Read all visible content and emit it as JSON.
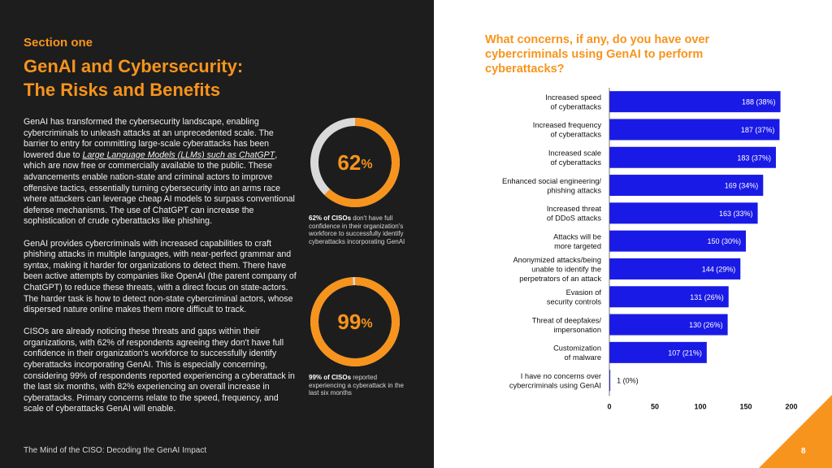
{
  "left": {
    "section": "Section one",
    "title_line1": "GenAI and Cybersecurity:",
    "title_line2": "The Risks and Benefits",
    "para1_a": "GenAI has transformed the cybersecurity landscape, enabling cybercriminals to unleash attacks at an unprecedented scale. The barrier to entry for committing large-scale cyberattacks has been lowered due to ",
    "para1_link": "Large Language Models (LLMs) such as ChatGPT",
    "para1_b": ", which are now free or commercially available to the public. These advancements enable nation-state and criminal actors to improve offensive tactics, essentially turning cybersecurity into an arms race where attackers can leverage cheap AI models to surpass conventional defense mechanisms. The use of ChatGPT can increase the sophistication of crude cyberattacks like phishing.",
    "para2": "GenAI provides cybercriminals with increased capabilities to craft phishing attacks in multiple languages, with near-perfect grammar and syntax, making it harder for organizations to detect them. There have been active attempts by companies like OpenAI (the parent company of ChatGPT) to reduce these threats, with a direct focus on state-actors. The harder task is how to detect non-state cybercriminal actors, whose dispersed nature online makes them more difficult to track.",
    "para3": "CISOs are already noticing these threats and gaps within their organizations, with 62% of respondents agreeing they don't have full confidence in their organization's workforce to successfully identify cyberattacks incorporating GenAI. This is especially concerning, considering 99% of respondents reported experiencing a cyberattack in the last six months, with 82% experiencing an overall increase in cyberattacks. Primary concerns relate to the speed, frequency, and scale of cyberattacks GenAI will enable.",
    "footer": "The Mind of the CISO: Decoding the GenAI Impact"
  },
  "stats": [
    {
      "value": "62",
      "unit": "%",
      "fraction": 0.62,
      "bold": "62% of CISOs",
      "rest": " don't have full confidence in their organization's workforce to successfully identify cyberattacks incorporating GenAI"
    },
    {
      "value": "99",
      "unit": "%",
      "fraction": 0.99,
      "bold": "99% of CISOs",
      "rest": " reported experiencing a cyberattack in the last six months"
    }
  ],
  "page_number": "8",
  "colors": {
    "accent": "#f7941d",
    "bar": "#1a1ae6",
    "dark": "#1d1d1d",
    "ring_track": "#d9d9d9"
  },
  "chart_data": {
    "type": "bar",
    "orientation": "horizontal",
    "title": "What concerns, if any, do you have over cybercriminals using GenAI to perform cyberattacks?",
    "categories": [
      [
        "Increased speed",
        "of cyberattacks"
      ],
      [
        "Increased frequency",
        "of cyberattacks"
      ],
      [
        "Increased scale",
        "of cyberattacks"
      ],
      [
        "Enhanced social engineering/",
        "phishing attacks"
      ],
      [
        "Increased threat",
        "of DDoS attacks"
      ],
      [
        "Attacks will be",
        "more targeted"
      ],
      [
        "Anonymized attacks/being",
        "unable to identify the",
        "perpetrators of an attack"
      ],
      [
        "Evasion of",
        "security controls"
      ],
      [
        "Threat of deepfakes/",
        "impersonation"
      ],
      [
        "Customization",
        "of malware"
      ],
      [
        "I have no concerns over",
        "cybercriminals using GenAI"
      ]
    ],
    "values": [
      188,
      187,
      183,
      169,
      163,
      150,
      144,
      131,
      130,
      107,
      1
    ],
    "data_labels": [
      "188 (38%)",
      "187 (37%)",
      "183 (37%)",
      "169 (34%)",
      "163 (33%)",
      "150 (30%)",
      "144 (29%)",
      "131 (26%)",
      "130 (26%)",
      "107 (21%)",
      "1 (0%)"
    ],
    "xlim": [
      0,
      200
    ],
    "xticks": [
      0,
      50,
      100,
      150,
      200
    ],
    "xlabel": "",
    "ylabel": ""
  }
}
